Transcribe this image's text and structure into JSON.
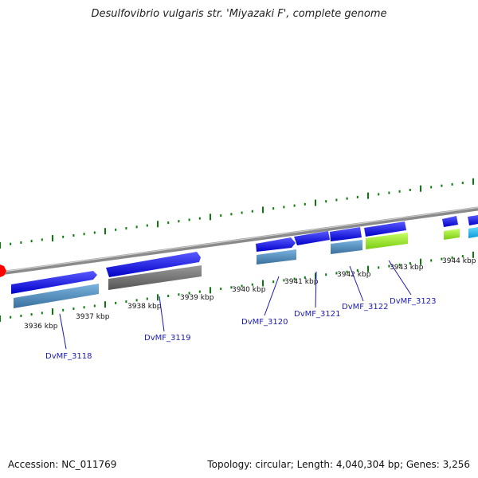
{
  "title": "Desulfovibrio vulgaris str. 'Miyazaki F', complete genome",
  "footer": {
    "accession": "Accession: NC_011769",
    "stats": "Topology: circular; Length: 4,040,304 bp; Genes: 3,256"
  },
  "scale_labels": [
    "3936 kbp",
    "3937 kbp",
    "3938 kbp",
    "3939 kbp",
    "3940 kbp",
    "3941 kbp",
    "3942 kbp",
    "3943 kbp",
    "3944 kbp"
  ],
  "gene_labels": [
    "DvMF_3118",
    "DvMF_3119",
    "DvMF_3120",
    "DvMF_3121",
    "DvMF_3122",
    "DvMF_3123"
  ],
  "colors": {
    "backbone": "#8a8a8a",
    "gene_arrow": "#1a1ae6",
    "feature_steelblue": "#4a8ac0",
    "feature_gray": "#6b6b6b",
    "feature_green": "#99ee22",
    "feature_cyan": "#22b8f0",
    "tick": "#0a7a0a",
    "origin_marker": "#ff0000",
    "label": "#1a1ab0"
  }
}
